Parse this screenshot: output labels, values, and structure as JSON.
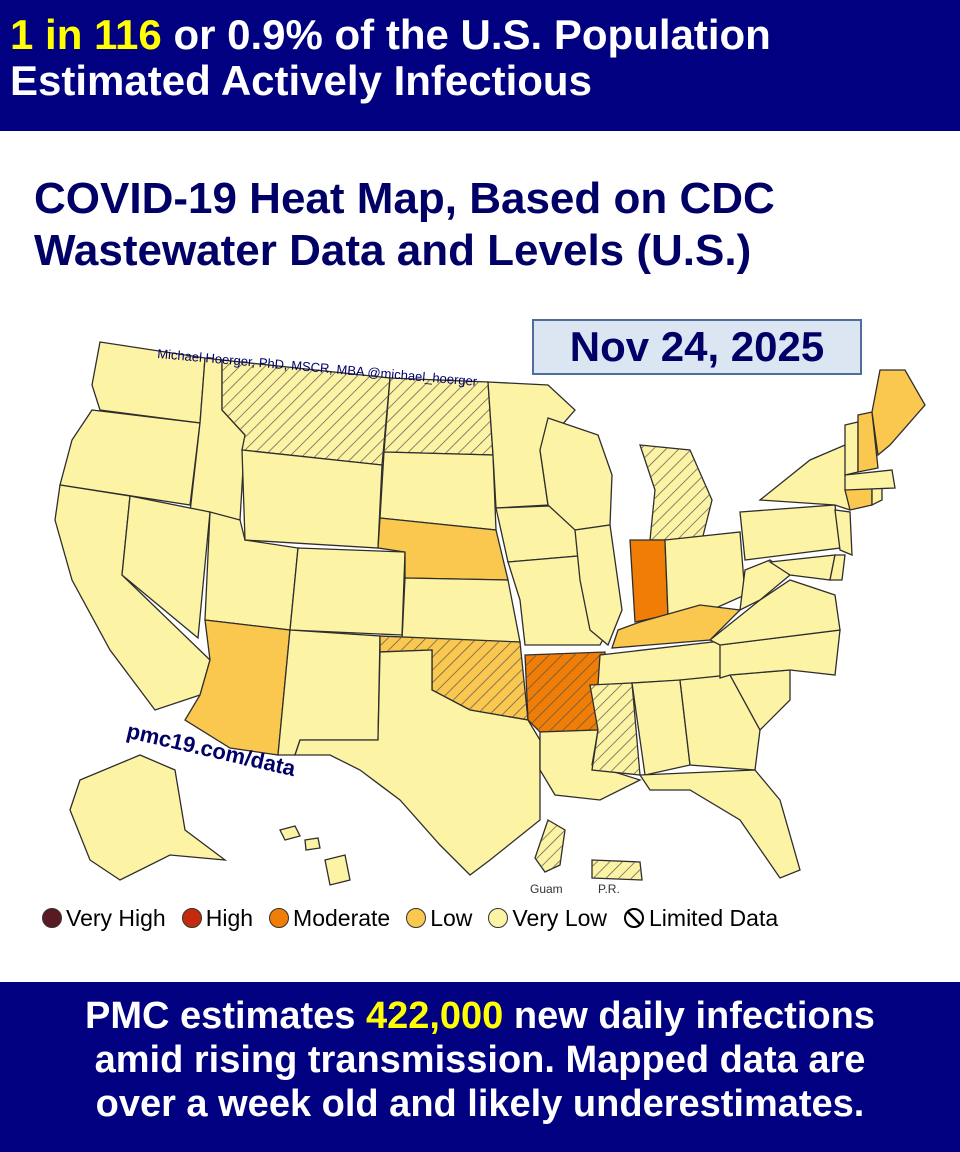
{
  "headline": {
    "ratio": "1 in 116",
    "line1_rest": " or 0.9% of the U.S. Population",
    "line2": "Estimated Actively Infectious"
  },
  "title": {
    "line1": "COVID-19 Heat Map, Based on CDC",
    "line2": "Wastewater Data and Levels (U.S.)"
  },
  "date": "Nov 24, 2025",
  "map": {
    "author": "Michael Hoerger, PhD, MSCR, MBA  @michael_hoerger",
    "url": "pmc19.com/data",
    "inset_labels": {
      "guam": "Guam",
      "pr": "P.R."
    },
    "colors": {
      "very_high": "#5a1a24",
      "high": "#c52a0c",
      "moderate": "#ef7d06",
      "low": "#fac74f",
      "very_low": "#fdf3a5",
      "border": "#2e2e2e"
    },
    "states": [
      {
        "name": "Washington",
        "level": "very_low"
      },
      {
        "name": "Oregon",
        "level": "very_low"
      },
      {
        "name": "California",
        "level": "very_low"
      },
      {
        "name": "Idaho",
        "level": "very_low"
      },
      {
        "name": "Nevada",
        "level": "very_low"
      },
      {
        "name": "Utah",
        "level": "very_low"
      },
      {
        "name": "Arizona",
        "level": "low"
      },
      {
        "name": "Montana",
        "level": "very_low",
        "limited": true
      },
      {
        "name": "Wyoming",
        "level": "very_low"
      },
      {
        "name": "Colorado",
        "level": "very_low"
      },
      {
        "name": "New Mexico",
        "level": "very_low"
      },
      {
        "name": "North Dakota",
        "level": "very_low",
        "limited": true
      },
      {
        "name": "South Dakota",
        "level": "very_low"
      },
      {
        "name": "Nebraska",
        "level": "low"
      },
      {
        "name": "Kansas",
        "level": "very_low"
      },
      {
        "name": "Oklahoma",
        "level": "low",
        "limited": true
      },
      {
        "name": "Texas",
        "level": "very_low"
      },
      {
        "name": "Minnesota",
        "level": "very_low"
      },
      {
        "name": "Iowa",
        "level": "very_low"
      },
      {
        "name": "Missouri",
        "level": "very_low"
      },
      {
        "name": "Arkansas",
        "level": "moderate",
        "limited": true
      },
      {
        "name": "Louisiana",
        "level": "very_low"
      },
      {
        "name": "Wisconsin",
        "level": "very_low"
      },
      {
        "name": "Illinois",
        "level": "very_low"
      },
      {
        "name": "Michigan",
        "level": "very_low",
        "limited": true
      },
      {
        "name": "Indiana",
        "level": "moderate"
      },
      {
        "name": "Ohio",
        "level": "very_low"
      },
      {
        "name": "Kentucky",
        "level": "low"
      },
      {
        "name": "Tennessee",
        "level": "very_low"
      },
      {
        "name": "Mississippi",
        "level": "very_low",
        "limited": true
      },
      {
        "name": "Alabama",
        "level": "very_low"
      },
      {
        "name": "Georgia",
        "level": "very_low"
      },
      {
        "name": "Florida",
        "level": "very_low"
      },
      {
        "name": "South Carolina",
        "level": "very_low"
      },
      {
        "name": "North Carolina",
        "level": "very_low"
      },
      {
        "name": "Virginia",
        "level": "very_low"
      },
      {
        "name": "West Virginia",
        "level": "very_low"
      },
      {
        "name": "Maryland",
        "level": "very_low"
      },
      {
        "name": "Delaware",
        "level": "very_low"
      },
      {
        "name": "Pennsylvania",
        "level": "very_low"
      },
      {
        "name": "New Jersey",
        "level": "very_low"
      },
      {
        "name": "New York",
        "level": "very_low"
      },
      {
        "name": "Connecticut",
        "level": "low"
      },
      {
        "name": "Rhode Island",
        "level": "very_low"
      },
      {
        "name": "Massachusetts",
        "level": "very_low"
      },
      {
        "name": "Vermont",
        "level": "very_low"
      },
      {
        "name": "New Hampshire",
        "level": "low"
      },
      {
        "name": "Maine",
        "level": "low"
      },
      {
        "name": "Alaska",
        "level": "very_low"
      },
      {
        "name": "Hawaii",
        "level": "very_low"
      },
      {
        "name": "Guam",
        "level": "very_low",
        "limited": true
      },
      {
        "name": "Puerto Rico",
        "level": "very_low",
        "limited": true
      }
    ]
  },
  "legend": [
    {
      "label": "Very High",
      "color": "#5a1a24"
    },
    {
      "label": "High",
      "color": "#c52a0c"
    },
    {
      "label": "Moderate",
      "color": "#ef7d06"
    },
    {
      "label": "Low",
      "color": "#fac74f"
    },
    {
      "label": "Very Low",
      "color": "#fdf3a5"
    },
    {
      "label": "Limited Data",
      "icon": "hatch-icon"
    }
  ],
  "footer": {
    "line1_pre": "PMC estimates ",
    "line1_num": "422,000",
    "line1_post": " new daily infections",
    "line2": "amid rising transmission. Mapped data are",
    "line3": "over a week old and likely underestimates."
  }
}
